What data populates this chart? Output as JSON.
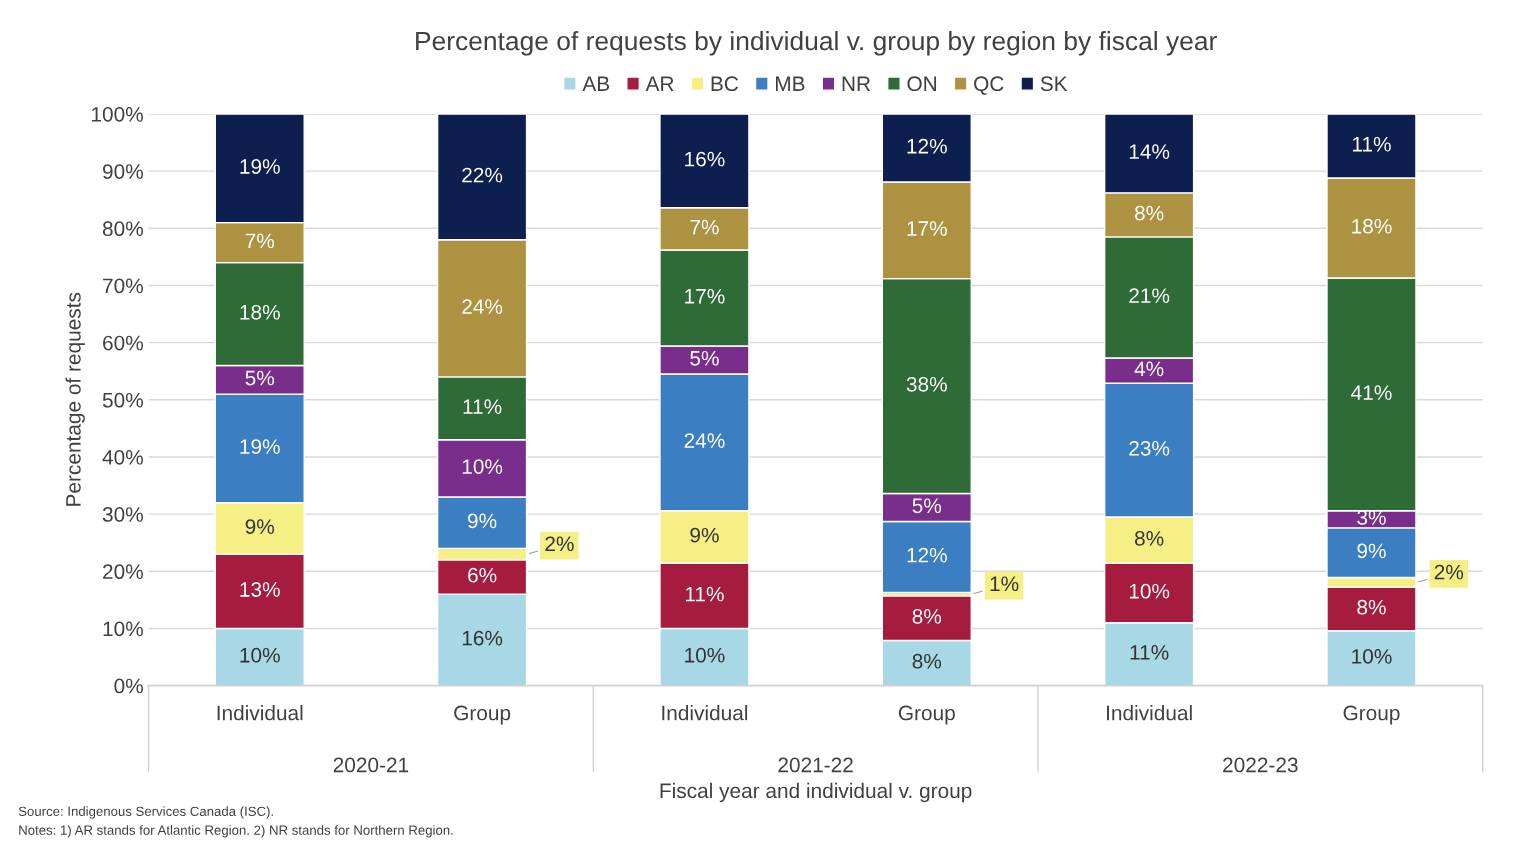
{
  "chart_data": {
    "type": "bar",
    "stacked": true,
    "title": "Percentage of requests by individual v. group by region by fiscal year",
    "xlabel": "Fiscal year and individual v. group",
    "ylabel": "Percentage of requests",
    "categories": [
      "Individual",
      "Group",
      "Individual",
      "Group",
      "Individual",
      "Group"
    ],
    "series": [
      {
        "name": "AB",
        "color": "#a8d8e6",
        "values": [
          10,
          16,
          10,
          7.9,
          11,
          9.6
        ],
        "value_labels": [
          "10%",
          "16%",
          "10%",
          "8%",
          "11%",
          "10%"
        ]
      },
      {
        "name": "AR",
        "color": "#a51c3e",
        "values": [
          13,
          6,
          11.4,
          7.8,
          10.4,
          7.6
        ],
        "value_labels": [
          "13%",
          "6%",
          "11%",
          "8%",
          "10%",
          "8%"
        ]
      },
      {
        "name": "BC",
        "color": "#f5ef86",
        "values": [
          9,
          2,
          9.2,
          0.6,
          8.1,
          1.7
        ],
        "value_labels": [
          "9%",
          "2%",
          "9%",
          "1%",
          "8%",
          "2%"
        ]
      },
      {
        "name": "MB",
        "color": "#3b7fc2",
        "values": [
          19,
          9,
          23.9,
          12.4,
          23.4,
          8.7
        ],
        "value_labels": [
          "19%",
          "9%",
          "24%",
          "12%",
          "23%",
          "9%"
        ]
      },
      {
        "name": "NR",
        "color": "#7a2e8c",
        "values": [
          5,
          10,
          4.9,
          4.9,
          4.4,
          3.0
        ],
        "value_labels": [
          "5%",
          "10%",
          "5%",
          "5%",
          "4%",
          "3%"
        ]
      },
      {
        "name": "ON",
        "color": "#2f6b36",
        "values": [
          18,
          11,
          16.8,
          37.6,
          21.2,
          40.7
        ],
        "value_labels": [
          "18%",
          "11%",
          "17%",
          "38%",
          "21%",
          "41%"
        ]
      },
      {
        "name": "QC",
        "color": "#ad9242",
        "values": [
          7,
          24,
          7.4,
          16.9,
          7.7,
          17.5
        ],
        "value_labels": [
          "7%",
          "24%",
          "7%",
          "17%",
          "8%",
          "18%"
        ]
      },
      {
        "name": "SK",
        "color": "#0d1f4e",
        "values": [
          19,
          22,
          16.4,
          11.9,
          13.8,
          11.2
        ],
        "value_labels": [
          "19%",
          "22%",
          "16%",
          "12%",
          "14%",
          "11%"
        ]
      }
    ],
    "ylim": [
      0,
      100
    ],
    "yticks": [
      {
        "value": 0,
        "label": "0%"
      },
      {
        "value": 10,
        "label": "10%"
      },
      {
        "value": 20,
        "label": "20%"
      },
      {
        "value": 30,
        "label": "30%"
      },
      {
        "value": 40,
        "label": "40%"
      },
      {
        "value": 50,
        "label": "50%"
      },
      {
        "value": 60,
        "label": "60%"
      },
      {
        "value": 70,
        "label": "70%"
      },
      {
        "value": 80,
        "label": "80%"
      },
      {
        "value": 90,
        "label": "90%"
      },
      {
        "value": 100,
        "label": "100%"
      }
    ],
    "grid": "y",
    "legend": "top",
    "annotations": [
      {
        "text": "2020-21"
      },
      {
        "text": "2021-22"
      },
      {
        "text": "2022-23"
      },
      "Source: Indigenous Services Canada (ISC).",
      "Notes: 1) AR stands for Atlantic Region. 2) NR stands for Northern Region."
    ]
  }
}
